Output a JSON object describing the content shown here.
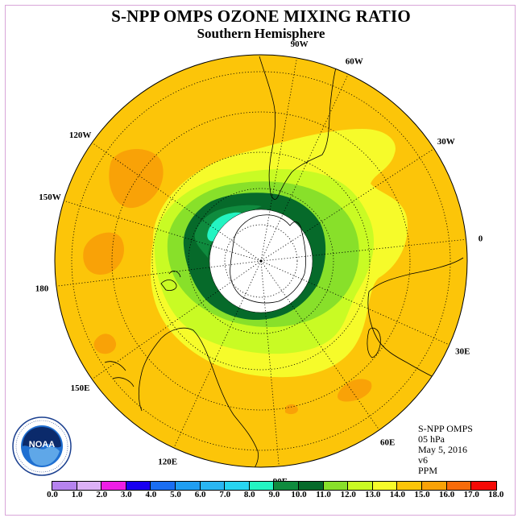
{
  "title": "S-NPP OMPS OZONE MIXING RATIO",
  "subtitle": "Southern Hemisphere",
  "info": {
    "instrument": "S-NPP OMPS",
    "level": "05 hPa",
    "date": "May 5, 2016",
    "version": "v6",
    "units": "PPM"
  },
  "logo_text": "NOAA",
  "longitude_labels": [
    "90W",
    "60W",
    "30W",
    "0",
    "30E",
    "60E",
    "90E",
    "120E",
    "150E",
    "180",
    "150W",
    "120W"
  ],
  "colorbar": {
    "tick_labels": [
      "0.0",
      "1.0",
      "2.0",
      "3.0",
      "4.0",
      "5.0",
      "6.0",
      "7.0",
      "8.0",
      "9.0",
      "10.0",
      "11.0",
      "12.0",
      "13.0",
      "14.0",
      "15.0",
      "16.0",
      "17.0",
      "18.0"
    ],
    "colors": [
      "#b683ee",
      "#dcb1f6",
      "#ee1ee6",
      "#1800f0",
      "#1a6ef2",
      "#209ef2",
      "#2ab6f2",
      "#27d4f0",
      "#24f4c2",
      "#0f8b3e",
      "#066a2a",
      "#88e02a",
      "#c9fb24",
      "#f6fb2a",
      "#fcc509",
      "#f9a207",
      "#f76b0a",
      "#f50a06",
      "#8b5d3b"
    ]
  },
  "map_colors": {
    "c13_14": "#fcc509",
    "c14_15": "#f9a207",
    "c12_13": "#f6fb2a",
    "c11_12": "#c9fb24",
    "c10_11": "#88e02a",
    "c9_10": "#066a2a",
    "c8_9": "#0f8b3e",
    "c7_8": "#24f4c2",
    "nodata": "#ffffff"
  }
}
